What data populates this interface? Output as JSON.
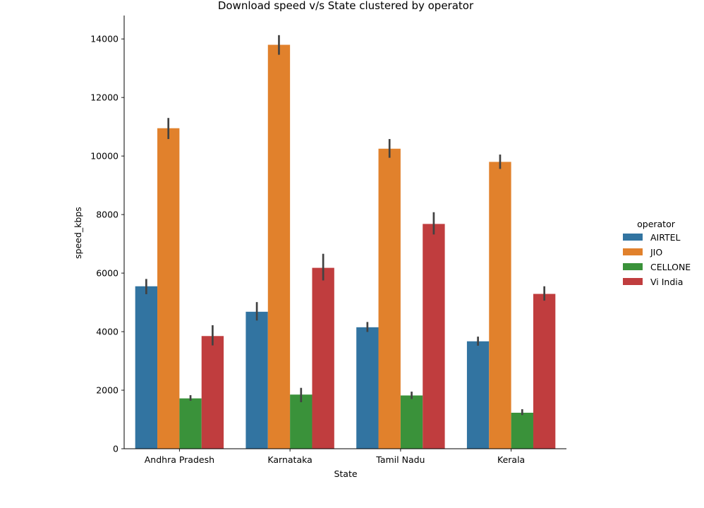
{
  "chart_data": {
    "type": "bar",
    "title": "Download speed v/s State clustered by operator",
    "xlabel": "State",
    "ylabel": "speed_kbps",
    "categories": [
      "Andhra Pradesh",
      "Karnataka",
      "Tamil Nadu",
      "Kerala"
    ],
    "ylim": [
      0,
      14800
    ],
    "yticks": [
      0,
      2000,
      4000,
      6000,
      8000,
      10000,
      12000,
      14000
    ],
    "grid": false,
    "legend": {
      "title": "operator",
      "placement": "right"
    },
    "series": [
      {
        "name": "AIRTEL",
        "color": "#3274a1",
        "values": [
          5550,
          4680,
          4150,
          3670
        ],
        "error_low": [
          5280,
          4380,
          3990,
          3520
        ],
        "error_high": [
          5800,
          5010,
          4330,
          3830
        ]
      },
      {
        "name": "JIO",
        "color": "#e1812c",
        "values": [
          10950,
          13800,
          10250,
          9800
        ],
        "error_low": [
          10580,
          13460,
          9940,
          9560
        ],
        "error_high": [
          11300,
          14130,
          10580,
          10050
        ]
      },
      {
        "name": "CELLONE",
        "color": "#3a923a",
        "values": [
          1720,
          1850,
          1820,
          1230
        ],
        "error_low": [
          1640,
          1590,
          1700,
          1150
        ],
        "error_high": [
          1830,
          2080,
          1950,
          1350
        ]
      },
      {
        "name": "Vi India",
        "color": "#c03d3e",
        "values": [
          3850,
          6180,
          7680,
          5290
        ],
        "error_low": [
          3530,
          5750,
          7320,
          5060
        ],
        "error_high": [
          4220,
          6660,
          8080,
          5550
        ]
      }
    ]
  }
}
